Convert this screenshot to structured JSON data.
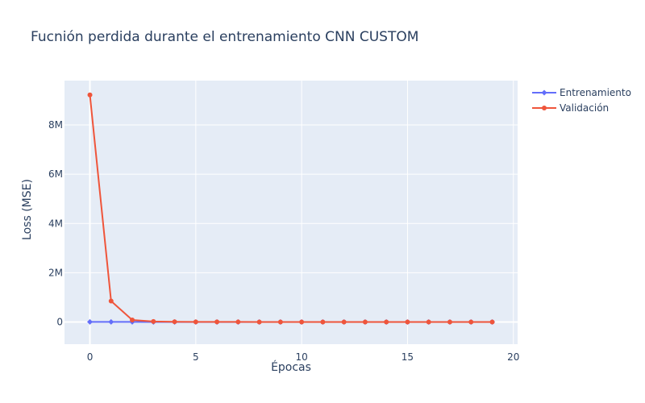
{
  "colors": {
    "plot_background": "#e5ecf6",
    "grid": "#ffffff",
    "text": "#2a3f5f"
  },
  "chart_data": {
    "type": "line",
    "title": "Fucnión perdida durante el entrenamiento CNN CUSTOM",
    "xlabel": "Épocas",
    "ylabel": "Loss (MSE)",
    "x": [
      0,
      1,
      2,
      3,
      4,
      5,
      6,
      7,
      8,
      9,
      10,
      11,
      12,
      13,
      14,
      15,
      16,
      17,
      18,
      19
    ],
    "xlim": [
      -1.2,
      20.2
    ],
    "ylim": [
      -900000,
      9800000
    ],
    "x_ticks": [
      0,
      5,
      10,
      15,
      20
    ],
    "x_tick_labels": [
      "0",
      "5",
      "10",
      "15",
      "20"
    ],
    "y_ticks": [
      0,
      2000000,
      4000000,
      6000000,
      8000000
    ],
    "y_tick_labels": [
      "0",
      "2M",
      "4M",
      "6M",
      "8M"
    ],
    "grid": true,
    "legend_position": "top-right",
    "series": [
      {
        "name": "Entrenamiento",
        "color": "#636efa",
        "marker": "diamond",
        "values": [
          5000,
          3000,
          2000,
          1500,
          1200,
          1000,
          900,
          800,
          700,
          650,
          600,
          550,
          500,
          480,
          460,
          440,
          420,
          400,
          390,
          380
        ]
      },
      {
        "name": "Validación",
        "color": "#ef553b",
        "marker": "circle",
        "values": [
          9220000,
          850000,
          80000,
          20000,
          10000,
          5000,
          3000,
          2000,
          1500,
          1200,
          1000,
          900,
          800,
          700,
          650,
          600,
          550,
          500,
          450,
          400
        ]
      }
    ]
  }
}
